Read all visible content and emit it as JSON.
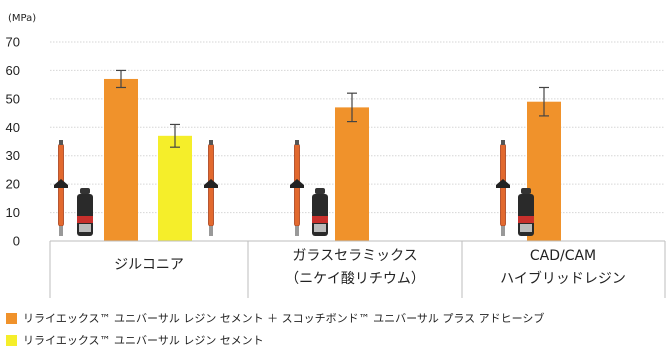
{
  "chart_data": {
    "type": "bar",
    "unit": "(MPa)",
    "ylim": [
      0,
      70
    ],
    "yticks": [
      0,
      10,
      20,
      30,
      40,
      50,
      60,
      70
    ],
    "grid": true,
    "categories": [
      [
        "ジルコニア"
      ],
      [
        "ガラスセラミックス",
        "（ニケイ酸リチウム）"
      ],
      [
        "CAD/CAM",
        "ハイブリッドレジン"
      ]
    ],
    "series": [
      {
        "name": "リライエックス™ ユニバーサル レジン セメント ＋ スコッチボンド™ ユニバーサル プラス アドヒーシブ",
        "color": "#f0922b",
        "values": [
          57,
          47,
          49
        ],
        "errors": [
          3,
          5,
          5
        ]
      },
      {
        "name": "リライエックス™ ユニバーサル レジン セメント",
        "color": "#f5ee2a",
        "values": [
          37,
          null,
          null
        ],
        "errors": [
          4,
          null,
          null
        ]
      }
    ],
    "legend_position": "bottom"
  }
}
